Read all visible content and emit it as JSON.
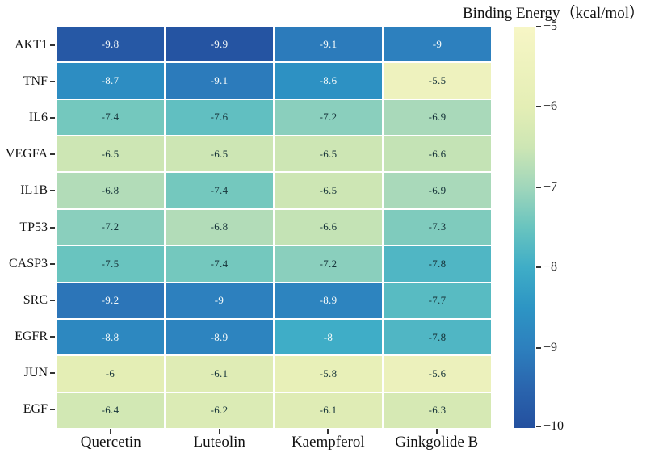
{
  "title": "Binding Energy（kcal/mol）",
  "chart_data": {
    "type": "heatmap",
    "rows": [
      "AKT1",
      "TNF",
      "IL6",
      "VEGFA",
      "IL1B",
      "TP53",
      "CASP3",
      "SRC",
      "EGFR",
      "JUN",
      "EGF"
    ],
    "columns": [
      "Quercetin",
      "Luteolin",
      "Kaempferol",
      "Ginkgolide B"
    ],
    "values": [
      [
        -9.8,
        -9.9,
        -9.1,
        -9
      ],
      [
        -8.7,
        -9.1,
        -8.6,
        -5.5
      ],
      [
        -7.4,
        -7.6,
        -7.2,
        -6.9
      ],
      [
        -6.5,
        -6.5,
        -6.5,
        -6.6
      ],
      [
        -6.8,
        -7.4,
        -6.5,
        -6.9
      ],
      [
        -7.2,
        -6.8,
        -6.6,
        -7.3
      ],
      [
        -7.5,
        -7.4,
        -7.2,
        -7.8
      ],
      [
        -9.2,
        -9,
        -8.9,
        -7.7
      ],
      [
        -8.8,
        -8.9,
        -8,
        -7.8
      ],
      [
        -6,
        -6.1,
        -5.8,
        -5.6
      ],
      [
        -6.4,
        -6.2,
        -6.1,
        -6.3
      ]
    ],
    "colorbar": {
      "title": "Binding Energy（kcal/mol）",
      "tick_labels": [
        "−5",
        "−6",
        "−7",
        "−8",
        "−9",
        "−10"
      ],
      "tick_values": [
        -5,
        -6,
        -7,
        -8,
        -9,
        -10
      ],
      "range": [
        -5,
        -10
      ],
      "orientation": "vertical"
    },
    "colormap_stops": [
      {
        "value": -5.0,
        "color": "#f7f6c6"
      },
      {
        "value": -6.0,
        "color": "#e4eeb5"
      },
      {
        "value": -6.5,
        "color": "#cde6b4"
      },
      {
        "value": -7.0,
        "color": "#a0d6bb"
      },
      {
        "value": -7.5,
        "color": "#69c4bf"
      },
      {
        "value": -8.0,
        "color": "#3fadc7"
      },
      {
        "value": -8.5,
        "color": "#2d95c4"
      },
      {
        "value": -9.0,
        "color": "#2d80be"
      },
      {
        "value": -9.5,
        "color": "#2a65ae"
      },
      {
        "value": -10.0,
        "color": "#24509f"
      }
    ],
    "value_text_dark_color": "#17343a",
    "value_text_light_color": "#f7fbfa",
    "light_text_threshold": -8.0,
    "grid_on": true,
    "legend_position": "right"
  }
}
